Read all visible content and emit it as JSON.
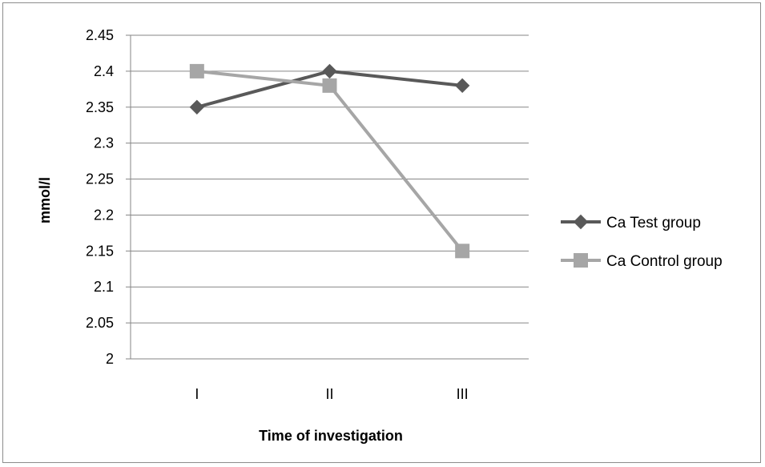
{
  "chart_data": {
    "type": "line",
    "categories": [
      "I",
      "II",
      "III"
    ],
    "series": [
      {
        "name": "Ca Test group",
        "values": [
          2.35,
          2.4,
          2.38
        ],
        "color": "#595959",
        "marker": "diamond"
      },
      {
        "name": "Ca Control group",
        "values": [
          2.4,
          2.38,
          2.15
        ],
        "color": "#a6a6a6",
        "marker": "square"
      }
    ],
    "xlabel": "Time of investigation",
    "ylabel": "mmol/l",
    "ylim": [
      2,
      2.45
    ],
    "yticks": [
      "2",
      "2.05",
      "2.1",
      "2.15",
      "2.2",
      "2.25",
      "2.3",
      "2.35",
      "2.4",
      "2.45"
    ],
    "grid": true,
    "legend": "right"
  }
}
